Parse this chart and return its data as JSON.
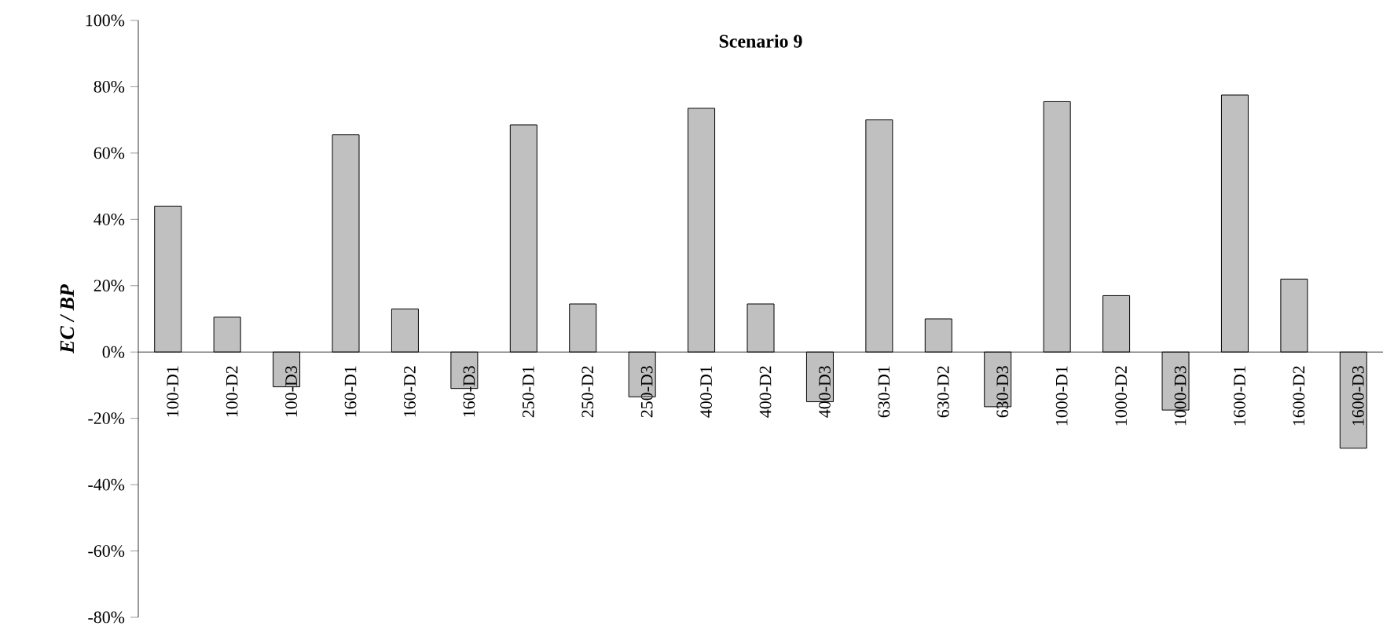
{
  "chart_data": {
    "type": "bar",
    "title": "Scenario 9",
    "ylabel": "EC / BP",
    "categories": [
      "100-D1",
      "100-D2",
      "100-D3",
      "160-D1",
      "160-D2",
      "160-D3",
      "250-D1",
      "250-D2",
      "250-D3",
      "400-D1",
      "400-D2",
      "400-D3",
      "630-D1",
      "630-D2",
      "630-D3",
      "1000-D1",
      "1000-D2",
      "1000-D3",
      "1600-D1",
      "1600-D2",
      "1600-D3"
    ],
    "values": [
      44,
      10.5,
      -10.5,
      65.5,
      13,
      -11,
      68.5,
      14.5,
      -13.5,
      73.5,
      14.5,
      -15,
      70,
      10,
      -16.5,
      75.5,
      17,
      -17.5,
      77.5,
      22,
      -29
    ],
    "color": "#c0c0c0",
    "ylim": [
      -80,
      100
    ],
    "yticks": [
      {
        "value": -80,
        "label": "-80%"
      },
      {
        "value": -60,
        "label": "-60%"
      },
      {
        "value": -40,
        "label": "-40%"
      },
      {
        "value": -20,
        "label": "-20%"
      },
      {
        "value": 0,
        "label": "0%"
      },
      {
        "value": 20,
        "label": "20%"
      },
      {
        "value": 40,
        "label": "40%"
      },
      {
        "value": 60,
        "label": "60%"
      },
      {
        "value": 80,
        "label": "80%"
      },
      {
        "value": 100,
        "label": "100%"
      }
    ],
    "grid": false
  }
}
